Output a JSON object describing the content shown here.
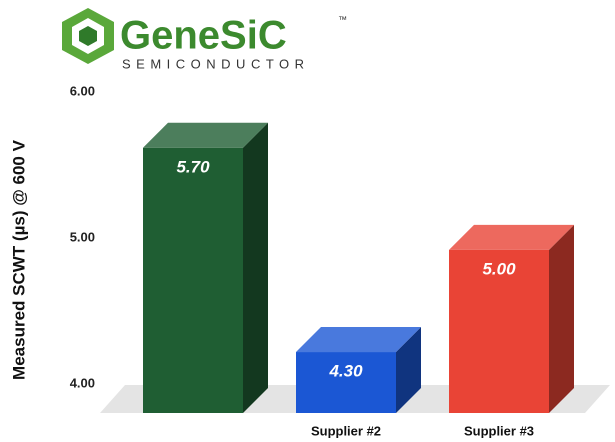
{
  "logo": {
    "name": "GeneSiC",
    "tm": "™",
    "tagline": "SEMICONDUCTOR"
  },
  "chart_data": {
    "type": "bar3d",
    "ylabel": "Measured SCWT (µs) @ 600 V",
    "categories": [
      null,
      "Supplier #2",
      "Supplier #3"
    ],
    "values": [
      5.7,
      4.3,
      5.0
    ],
    "value_labels": [
      "5.70",
      "4.30",
      "5.00"
    ],
    "colors": [
      "#1f5e33",
      "#1b57d4",
      "#e94436"
    ],
    "ylim": [
      3.8,
      6.0
    ],
    "yticks": [
      {
        "value": 4,
        "label": "4.00"
      },
      {
        "value": 5,
        "label": "5.00"
      },
      {
        "value": 6,
        "label": "6.00"
      }
    ]
  }
}
